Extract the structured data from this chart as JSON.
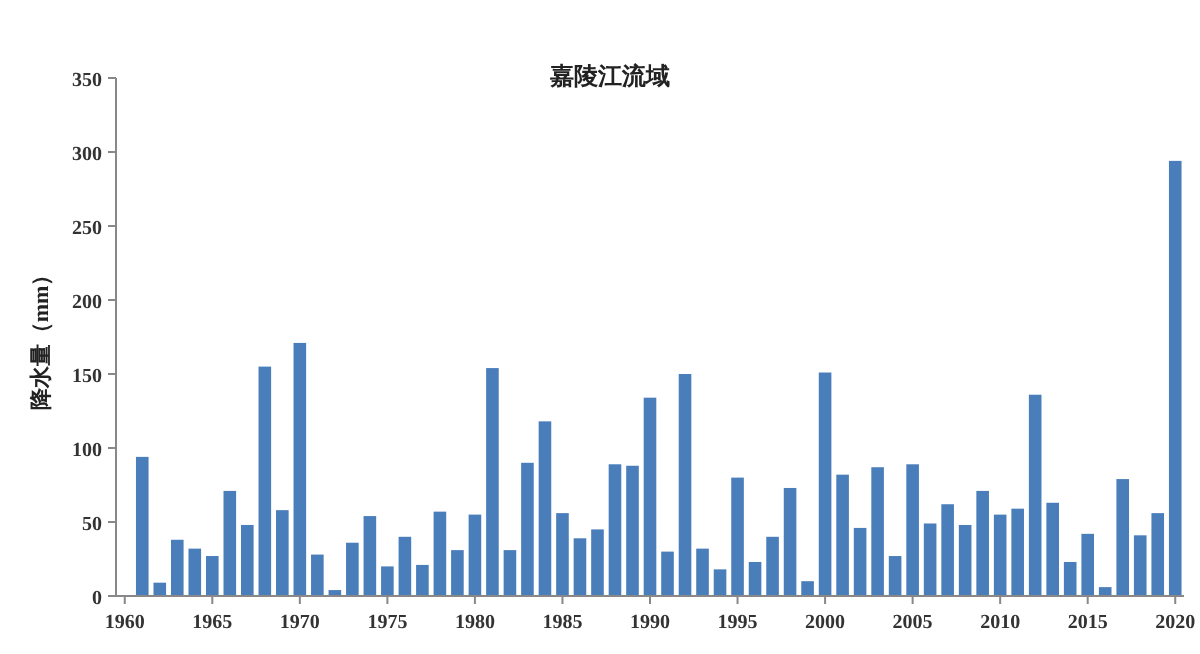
{
  "chart_data": {
    "type": "bar",
    "title": "嘉陵江流域",
    "ylabel": "降水量（mm）",
    "x": [
      1961,
      1962,
      1963,
      1964,
      1965,
      1966,
      1967,
      1968,
      1969,
      1970,
      1971,
      1972,
      1973,
      1974,
      1975,
      1976,
      1977,
      1978,
      1979,
      1980,
      1981,
      1982,
      1983,
      1984,
      1985,
      1986,
      1987,
      1988,
      1989,
      1990,
      1991,
      1992,
      1993,
      1994,
      1995,
      1996,
      1997,
      1998,
      1999,
      2000,
      2001,
      2002,
      2003,
      2004,
      2005,
      2006,
      2007,
      2008,
      2009,
      2010,
      2011,
      2012,
      2013,
      2014,
      2015,
      2016,
      2017,
      2018,
      2019,
      2020
    ],
    "values": [
      94,
      9,
      38,
      32,
      27,
      71,
      48,
      155,
      58,
      171,
      28,
      4,
      36,
      54,
      20,
      40,
      21,
      57,
      31,
      55,
      154,
      31,
      90,
      118,
      56,
      39,
      45,
      89,
      88,
      134,
      30,
      150,
      32,
      18,
      80,
      23,
      40,
      73,
      10,
      151,
      82,
      46,
      87,
      27,
      89,
      49,
      62,
      48,
      71,
      55,
      59,
      136,
      63,
      23,
      42,
      6,
      79,
      41,
      56,
      294
    ],
    "color": "#4a7ebb",
    "xlim": [
      1959.5,
      2020.5
    ],
    "xticks": [
      1960,
      1965,
      1970,
      1975,
      1980,
      1985,
      1990,
      1995,
      2000,
      2005,
      2010,
      2015,
      2020
    ],
    "ylim": [
      0,
      350
    ],
    "yticks": [
      0,
      50,
      100,
      150,
      200,
      250,
      300,
      350
    ],
    "grid": false
  }
}
